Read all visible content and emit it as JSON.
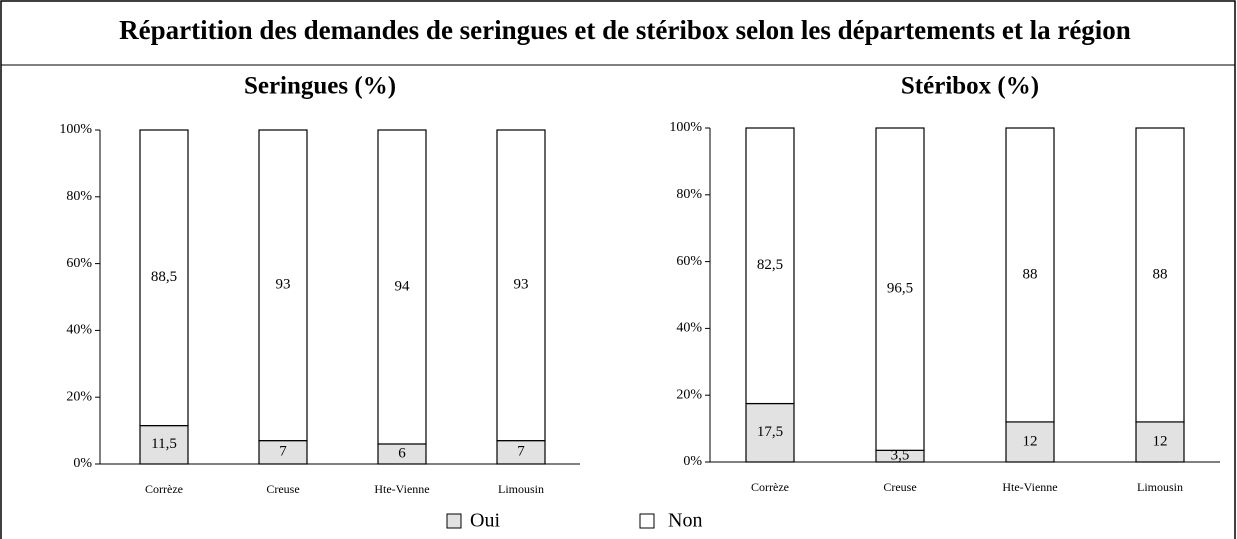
{
  "title": "Répartition des demandes de seringues et de stéribox selon les départements et la région",
  "chart_data": [
    {
      "type": "stacked_bar",
      "title": "Seringues (%)",
      "categories": [
        "Corrèze",
        "Creuse",
        "Hte-Vienne",
        "Limousin"
      ],
      "series": [
        {
          "name": "Oui",
          "color": "#e2e2e2",
          "values": [
            11.5,
            7,
            6,
            7
          ],
          "value_labels": [
            "11,5",
            "7",
            "6",
            "7"
          ]
        },
        {
          "name": "Non",
          "color": "#ffffff",
          "values": [
            88.5,
            93,
            94,
            93
          ],
          "value_labels": [
            "88,5",
            "93",
            "94",
            "93"
          ]
        }
      ],
      "ylim": [
        0,
        100
      ],
      "yticks": [
        {
          "value": 0,
          "label": "0%"
        },
        {
          "value": 20,
          "label": "20%"
        },
        {
          "value": 40,
          "label": "40%"
        },
        {
          "value": 60,
          "label": "60%"
        },
        {
          "value": 80,
          "label": "80%"
        },
        {
          "value": 100,
          "label": "100%"
        }
      ]
    },
    {
      "type": "stacked_bar",
      "title": "Stéribox (%)",
      "categories": [
        "Corrèze",
        "Creuse",
        "Hte-Vienne",
        "Limousin"
      ],
      "series": [
        {
          "color": "#e2e2e2",
          "values": [
            17.5,
            3.5,
            12,
            12
          ],
          "value_labels": [
            "17,5",
            "3,5",
            "12",
            "12"
          ]
        },
        {
          "color": "#ffffff",
          "values": [
            82.5,
            96.5,
            88,
            88
          ],
          "value_labels": [
            "82,5",
            "96,5",
            "88",
            "88"
          ]
        }
      ],
      "ylim": [
        0,
        100
      ],
      "yticks": [
        {
          "value": 0,
          "label": "0%"
        },
        {
          "value": 20,
          "label": "20%"
        },
        {
          "value": 40,
          "label": "40%"
        },
        {
          "value": 60,
          "label": "60%"
        },
        {
          "value": 80,
          "label": "80%"
        },
        {
          "value": 100,
          "label": "100%"
        }
      ]
    }
  ]
}
